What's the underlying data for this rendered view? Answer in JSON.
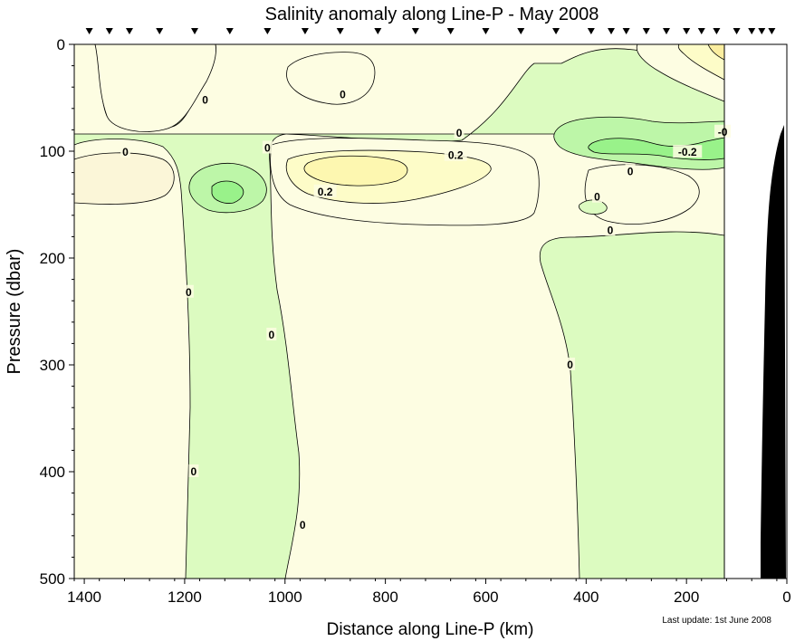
{
  "chart_data": {
    "type": "contour",
    "title": "Salinity anomaly along Line-P - May 2008",
    "xlabel": "Distance along Line-P (km)",
    "ylabel": "Pressure (dbar)",
    "xlim": [
      1420,
      0
    ],
    "ylim": [
      0,
      500
    ],
    "x_ticks": [
      "1400",
      "1200",
      "1000",
      "800",
      "600",
      "400",
      "200",
      "0"
    ],
    "y_ticks": [
      "0",
      "100",
      "200",
      "300",
      "400",
      "500"
    ],
    "station_km": [
      1390,
      1350,
      1310,
      1250,
      1180,
      1110,
      1035,
      960,
      890,
      815,
      740,
      670,
      600,
      530,
      460,
      390,
      350,
      320,
      280,
      240,
      200,
      170,
      140,
      100,
      70,
      50,
      30
    ],
    "data_edge_km": 125,
    "levels": [
      {
        "value": -0.3,
        "color": "#99f28a"
      },
      {
        "value": -0.2,
        "color": "#bdf6a8"
      },
      {
        "value": -0.1,
        "color": "#dcfbc0"
      },
      {
        "value": 0.0,
        "color": "#fdfde2"
      },
      {
        "value": 0.1,
        "color": "#fdfcc8"
      },
      {
        "value": 0.2,
        "color": "#fdf7b0"
      },
      {
        "value": 0.3,
        "color": "#fbeea0"
      }
    ],
    "contour_labels": [
      {
        "text": "0",
        "x": 1318,
        "y": 101
      },
      {
        "text": "0",
        "x": 1159,
        "y": 52
      },
      {
        "text": "0",
        "x": 1192,
        "y": 232
      },
      {
        "text": "0",
        "x": 1182,
        "y": 400
      },
      {
        "text": "0",
        "x": 1035,
        "y": 97
      },
      {
        "text": "0",
        "x": 1027,
        "y": 272
      },
      {
        "text": "0",
        "x": 965,
        "y": 450
      },
      {
        "text": "0",
        "x": 885,
        "y": 47
      },
      {
        "text": "0",
        "x": 653,
        "y": 83
      },
      {
        "text": "0.2",
        "x": 660,
        "y": 104
      },
      {
        "text": "0.2",
        "x": 920,
        "y": 138
      },
      {
        "text": "0",
        "x": 432,
        "y": 300
      },
      {
        "text": "0",
        "x": 378,
        "y": 143
      },
      {
        "text": "0",
        "x": 312,
        "y": 119
      },
      {
        "text": "0",
        "x": 352,
        "y": 174
      },
      {
        "text": "-0.2",
        "x": 198,
        "y": 101
      },
      {
        "text": "-0",
        "x": 128,
        "y": 82
      }
    ],
    "footnote": "Last update: 1st June 2008"
  }
}
